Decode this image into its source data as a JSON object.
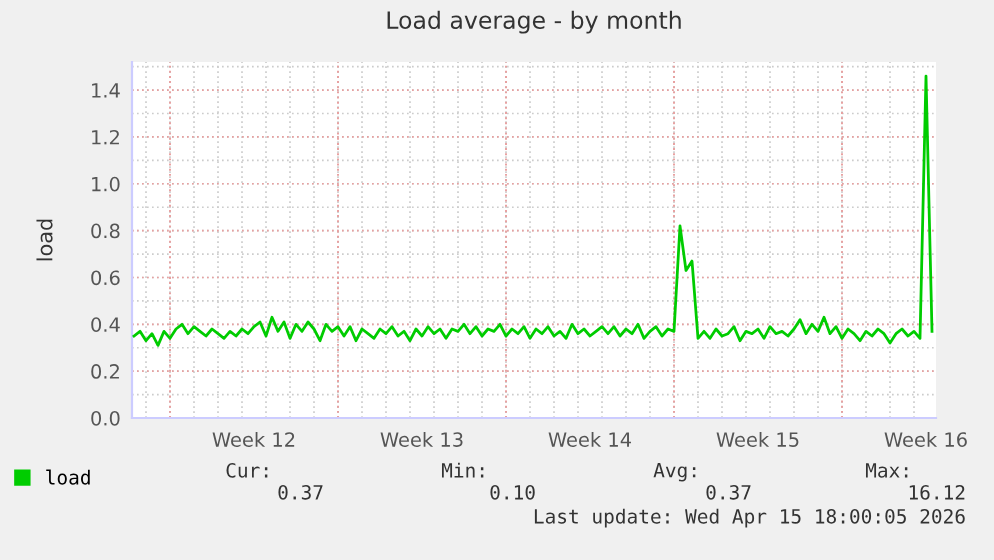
{
  "chart_data": {
    "type": "line",
    "title": "Load average - by month",
    "ylabel": "load",
    "x": [
      "2026-03-13T12:00",
      "2026-03-13T18:00",
      "2026-03-14T00:00",
      "2026-03-14T06:00",
      "2026-03-14T12:00",
      "2026-03-14T18:00",
      "2026-03-15T00:00",
      "2026-03-15T06:00",
      "2026-03-15T12:00",
      "2026-03-15T18:00",
      "2026-03-16T00:00",
      "2026-03-16T06:00",
      "2026-03-16T12:00",
      "2026-03-16T18:00",
      "2026-03-17T00:00",
      "2026-03-17T06:00",
      "2026-03-17T12:00",
      "2026-03-17T18:00",
      "2026-03-18T00:00",
      "2026-03-18T06:00",
      "2026-03-18T12:00",
      "2026-03-18T18:00",
      "2026-03-19T00:00",
      "2026-03-19T06:00",
      "2026-03-19T12:00",
      "2026-03-19T18:00",
      "2026-03-20T00:00",
      "2026-03-20T06:00",
      "2026-03-20T12:00",
      "2026-03-20T18:00",
      "2026-03-21T00:00",
      "2026-03-21T06:00",
      "2026-03-21T12:00",
      "2026-03-21T18:00",
      "2026-03-22T00:00",
      "2026-03-22T06:00",
      "2026-03-22T12:00",
      "2026-03-22T18:00",
      "2026-03-23T00:00",
      "2026-03-23T06:00",
      "2026-03-23T12:00",
      "2026-03-23T18:00",
      "2026-03-24T00:00",
      "2026-03-24T06:00",
      "2026-03-24T12:00",
      "2026-03-24T18:00",
      "2026-03-25T00:00",
      "2026-03-25T06:00",
      "2026-03-25T12:00",
      "2026-03-25T18:00",
      "2026-03-26T00:00",
      "2026-03-26T06:00",
      "2026-03-26T12:00",
      "2026-03-26T18:00",
      "2026-03-27T00:00",
      "2026-03-27T06:00",
      "2026-03-27T12:00",
      "2026-03-27T18:00",
      "2026-03-28T00:00",
      "2026-03-28T06:00",
      "2026-03-28T12:00",
      "2026-03-28T18:00",
      "2026-03-29T00:00",
      "2026-03-29T06:00",
      "2026-03-29T12:00",
      "2026-03-29T18:00",
      "2026-03-30T00:00",
      "2026-03-30T06:00",
      "2026-03-30T12:00",
      "2026-03-30T18:00",
      "2026-03-31T00:00",
      "2026-03-31T06:00",
      "2026-03-31T12:00",
      "2026-03-31T18:00",
      "2026-04-01T00:00",
      "2026-04-01T06:00",
      "2026-04-01T12:00",
      "2026-04-01T18:00",
      "2026-04-02T00:00",
      "2026-04-02T06:00",
      "2026-04-02T12:00",
      "2026-04-02T18:00",
      "2026-04-03T00:00",
      "2026-04-03T06:00",
      "2026-04-03T12:00",
      "2026-04-03T18:00",
      "2026-04-04T00:00",
      "2026-04-04T06:00",
      "2026-04-04T12:00",
      "2026-04-04T18:00",
      "2026-04-05T00:00",
      "2026-04-05T06:00",
      "2026-04-05T12:00",
      "2026-04-05T18:00",
      "2026-04-06T00:00",
      "2026-04-06T06:00",
      "2026-04-06T12:00",
      "2026-04-06T18:00",
      "2026-04-07T00:00",
      "2026-04-07T06:00",
      "2026-04-07T12:00",
      "2026-04-07T18:00",
      "2026-04-08T00:00",
      "2026-04-08T06:00",
      "2026-04-08T12:00",
      "2026-04-08T18:00",
      "2026-04-09T00:00",
      "2026-04-09T06:00",
      "2026-04-09T12:00",
      "2026-04-09T18:00",
      "2026-04-10T00:00",
      "2026-04-10T06:00",
      "2026-04-10T12:00",
      "2026-04-10T18:00",
      "2026-04-11T00:00",
      "2026-04-11T06:00",
      "2026-04-11T12:00",
      "2026-04-11T18:00",
      "2026-04-12T00:00",
      "2026-04-12T06:00",
      "2026-04-12T12:00",
      "2026-04-12T18:00",
      "2026-04-13T00:00",
      "2026-04-13T06:00",
      "2026-04-13T12:00",
      "2026-04-13T18:00",
      "2026-04-14T00:00",
      "2026-04-14T06:00",
      "2026-04-14T12:00",
      "2026-04-14T18:00",
      "2026-04-15T00:00",
      "2026-04-15T06:00",
      "2026-04-15T12:00",
      "2026-04-15T18:00"
    ],
    "series": [
      {
        "name": "load",
        "color": "#00cc00",
        "values": [
          0.35,
          0.37,
          0.33,
          0.36,
          0.31,
          0.37,
          0.34,
          0.38,
          0.4,
          0.36,
          0.39,
          0.37,
          0.35,
          0.38,
          0.36,
          0.34,
          0.37,
          0.35,
          0.38,
          0.36,
          0.39,
          0.41,
          0.35,
          0.43,
          0.37,
          0.41,
          0.34,
          0.4,
          0.37,
          0.41,
          0.38,
          0.33,
          0.4,
          0.37,
          0.39,
          0.35,
          0.39,
          0.33,
          0.38,
          0.36,
          0.34,
          0.38,
          0.36,
          0.39,
          0.35,
          0.37,
          0.33,
          0.38,
          0.35,
          0.39,
          0.36,
          0.38,
          0.34,
          0.38,
          0.37,
          0.4,
          0.36,
          0.39,
          0.35,
          0.38,
          0.37,
          0.4,
          0.35,
          0.38,
          0.36,
          0.39,
          0.34,
          0.38,
          0.36,
          0.39,
          0.35,
          0.37,
          0.34,
          0.4,
          0.36,
          0.38,
          0.35,
          0.37,
          0.39,
          0.36,
          0.39,
          0.35,
          0.38,
          0.36,
          0.4,
          0.34,
          0.37,
          0.39,
          0.35,
          0.38,
          0.37,
          0.82,
          0.63,
          0.67,
          0.34,
          0.37,
          0.34,
          0.38,
          0.35,
          0.36,
          0.39,
          0.33,
          0.37,
          0.36,
          0.38,
          0.34,
          0.39,
          0.36,
          0.37,
          0.35,
          0.38,
          0.42,
          0.36,
          0.4,
          0.37,
          0.43,
          0.36,
          0.39,
          0.34,
          0.38,
          0.36,
          0.33,
          0.37,
          0.35,
          0.38,
          0.36,
          0.32,
          0.36,
          0.38,
          0.35,
          0.37,
          0.34,
          1.46,
          0.37
        ]
      }
    ],
    "xlim": [
      "2026-03-13T10:00",
      "2026-04-15T22:00"
    ],
    "xticks": [
      {
        "value": "2026-03-18T12:00",
        "label": "Week 12"
      },
      {
        "value": "2026-03-25T12:00",
        "label": "Week 13"
      },
      {
        "value": "2026-04-01T12:00",
        "label": "Week 14"
      },
      {
        "value": "2026-04-08T12:00",
        "label": "Week 15"
      },
      {
        "value": "2026-04-15T12:00",
        "label": "Week 16"
      }
    ],
    "ylim": [
      0,
      1.52
    ],
    "yticks": [
      {
        "value": 0,
        "label": "0.0"
      },
      {
        "value": 0.2,
        "label": "0.2"
      },
      {
        "value": 0.4,
        "label": "0.4"
      },
      {
        "value": 0.6,
        "label": "0.6"
      },
      {
        "value": 0.8,
        "label": "0.8"
      },
      {
        "value": 1.0,
        "label": "1.0"
      },
      {
        "value": 1.2,
        "label": "1.2"
      },
      {
        "value": 1.4,
        "label": "1.4"
      }
    ],
    "ref_lines": [
      {
        "axis": "x",
        "value": "2026-03-15",
        "color": "#e8a0a0",
        "line_style": "dotted"
      },
      {
        "axis": "x",
        "value": "2026-03-22",
        "color": "#e8a0a0",
        "line_style": "dotted"
      },
      {
        "axis": "x",
        "value": "2026-03-29",
        "color": "#e8a0a0",
        "line_style": "dotted"
      },
      {
        "axis": "x",
        "value": "2026-04-05",
        "color": "#e8a0a0",
        "line_style": "dotted"
      },
      {
        "axis": "x",
        "value": "2026-04-12",
        "color": "#e8a0a0",
        "line_style": "dotted"
      }
    ],
    "grid": true,
    "legend": "bottom left",
    "marker": "none",
    "line_style": "solid",
    "annotations": [
      "Cur:",
      "Min:",
      "Avg:",
      "Max:",
      "0.37",
      "0.10",
      "0.37",
      "16.12",
      "Last update: Wed Apr 15 18:00:05 2026"
    ]
  }
}
